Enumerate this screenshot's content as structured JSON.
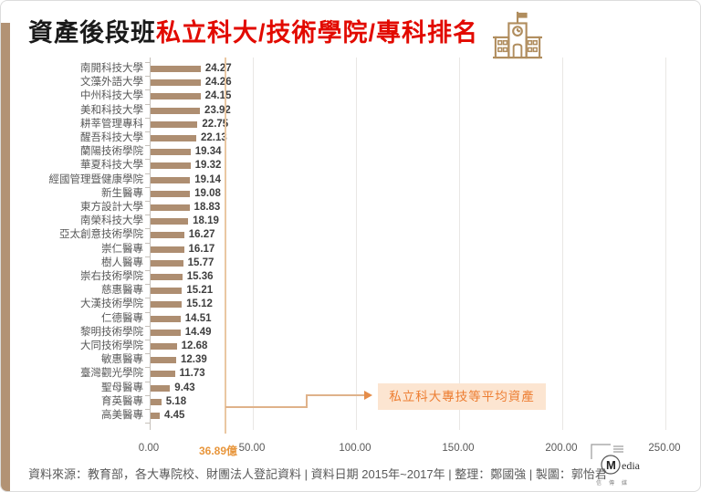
{
  "title": {
    "black": "資產後段班",
    "red": "私立科大/技術學院/專科排名"
  },
  "chart_data": {
    "type": "bar",
    "orientation": "horizontal",
    "title": "資產後段班私立科大/技術學院/專科排名",
    "unit": "億",
    "categories": [
      "南開科技大學",
      "文藻外語大學",
      "中州科技大學",
      "美和科技大學",
      "耕莘管理專科",
      "醒吾科技大學",
      "蘭陽技術學院",
      "華夏科技大學",
      "經國管理暨健康學院",
      "新生醫專",
      "東方設計大學",
      "南榮科技大學",
      "亞太創意技術學院",
      "崇仁醫專",
      "樹人醫專",
      "崇右技術學院",
      "慈惠醫專",
      "大漢技術學院",
      "仁德醫專",
      "黎明技術學院",
      "大同技術學院",
      "敏惠醫專",
      "臺灣觀光學院",
      "聖母醫專",
      "育英醫專",
      "高美醫專"
    ],
    "values": [
      24.27,
      24.26,
      24.15,
      23.92,
      22.75,
      22.13,
      19.34,
      19.32,
      19.14,
      19.08,
      18.83,
      18.19,
      16.27,
      16.17,
      15.77,
      15.36,
      15.21,
      15.12,
      14.51,
      14.49,
      12.68,
      12.39,
      11.73,
      9.43,
      5.18,
      4.45
    ],
    "xlim": [
      0,
      250
    ],
    "x_tick_values": [
      0,
      50,
      100,
      150,
      200,
      250
    ],
    "x_tick_labels": [
      "0.00",
      "50.00",
      "100.00",
      "150.00",
      "200.00",
      "250.00"
    ],
    "grid": "vertical",
    "legend": "none",
    "average": {
      "value": 36.89,
      "label": "36.89億",
      "callout": "私立科大專技等平均資產"
    }
  },
  "footer": {
    "text": "資料來源：教育部，各大專院校、財團法人登記資料 | 資料日期 2015年~2017年 | 整理：鄭國強 | 製圖：郭怡君"
  },
  "logo": {
    "name": "CMedia",
    "word": "edia",
    "initial": "M",
    "subtext": "信傳媒"
  },
  "colors": {
    "bar": "#ae8e71",
    "strip": "#b29274",
    "title_red": "#e20a00",
    "avg_line": "#eac7a2",
    "connector": "#dfb28a",
    "arrow": "#e58c49",
    "callout_bg": "#fce5d1",
    "callout_text": "#ed7d31",
    "avg_label_text": "#e8963c"
  }
}
